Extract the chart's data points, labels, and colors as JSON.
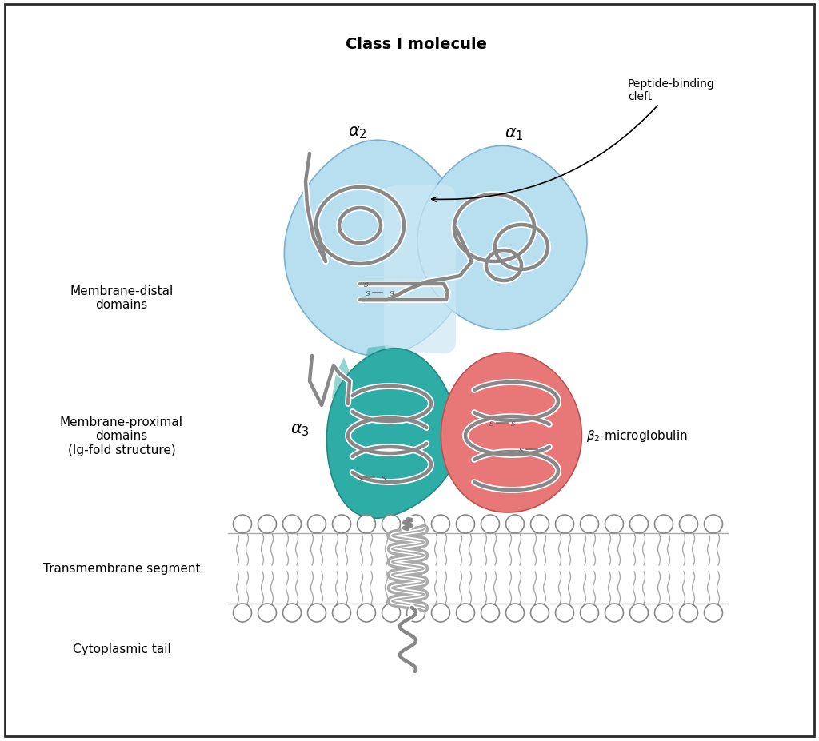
{
  "title": "Class I molecule",
  "background_color": "#ffffff",
  "border_color": "#2a2a2a",
  "label_membrane_distal": "Membrane-distal\ndomains",
  "label_membrane_proximal": "Membrane-proximal\ndomains\n(Ig-fold structure)",
  "label_transmembrane": "Transmembrane segment",
  "label_cytoplasmic": "Cytoplasmic tail",
  "label_alpha2": "α2",
  "label_alpha1": "α1",
  "label_alpha3": "α3",
  "label_beta2m": "β2-microglobulin",
  "label_peptide_binding": "Peptide-binding\ncleft",
  "color_alpha1_alpha2_light": "#b8dff0",
  "color_alpha1_alpha2_mid": "#8ecce8",
  "color_alpha3": "#2dada5",
  "color_beta2m": "#e87878",
  "chain_color": "#888888",
  "chain_lw": 3.2,
  "chain_lw_thin": 2.0
}
